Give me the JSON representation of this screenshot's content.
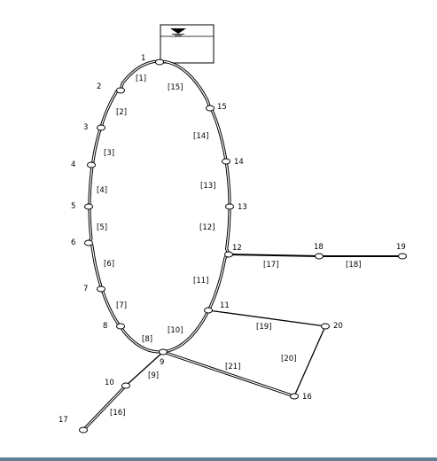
{
  "nodes": [
    {
      "id": "1",
      "label": "1"
    },
    {
      "id": "2",
      "label": "2"
    },
    {
      "id": "3",
      "label": "3"
    },
    {
      "id": "4",
      "label": "4"
    },
    {
      "id": "5",
      "label": "5"
    },
    {
      "id": "6",
      "label": "6"
    },
    {
      "id": "7",
      "label": "7"
    },
    {
      "id": "8",
      "label": "8"
    },
    {
      "id": "9",
      "label": "9"
    },
    {
      "id": "10",
      "label": "10"
    },
    {
      "id": "11",
      "label": "11"
    },
    {
      "id": "12",
      "label": "12"
    },
    {
      "id": "13",
      "label": "13"
    },
    {
      "id": "14",
      "label": "14"
    },
    {
      "id": "15",
      "label": "15"
    },
    {
      "id": "16",
      "label": "16"
    },
    {
      "id": "17",
      "label": "17"
    },
    {
      "id": "18",
      "label": "18"
    },
    {
      "id": "19",
      "label": "19"
    },
    {
      "id": "20",
      "label": "20"
    }
  ],
  "pipes": [
    {
      "id": "p1",
      "label": "[1]",
      "from": "1",
      "to": "2"
    },
    {
      "id": "p2",
      "label": "[2]",
      "from": "2",
      "to": "3"
    },
    {
      "id": "p3",
      "label": "[3]",
      "from": "3",
      "to": "4"
    },
    {
      "id": "p4",
      "label": "[4]",
      "from": "4",
      "to": "5"
    },
    {
      "id": "p5",
      "label": "[5]",
      "from": "5",
      "to": "6"
    },
    {
      "id": "p6",
      "label": "[6]",
      "from": "6",
      "to": "7"
    },
    {
      "id": "p7",
      "label": "[7]",
      "from": "7",
      "to": "8"
    },
    {
      "id": "p8",
      "label": "[8]",
      "from": "8",
      "to": "9"
    },
    {
      "id": "p9",
      "label": "[9]",
      "from": "9",
      "to": "10"
    },
    {
      "id": "p10",
      "label": "[10]",
      "from": "9",
      "to": "11"
    },
    {
      "id": "p11",
      "label": "[11]",
      "from": "11",
      "to": "12"
    },
    {
      "id": "p12",
      "label": "[12]",
      "from": "12",
      "to": "13"
    },
    {
      "id": "p13",
      "label": "[13]",
      "from": "13",
      "to": "14"
    },
    {
      "id": "p14",
      "label": "[14]",
      "from": "14",
      "to": "15"
    },
    {
      "id": "p15",
      "label": "[15]",
      "from": "15",
      "to": "1"
    },
    {
      "id": "p16",
      "label": "[16]",
      "from": "10",
      "to": "17"
    },
    {
      "id": "p17",
      "label": "[17]",
      "from": "12",
      "to": "18"
    },
    {
      "id": "p18",
      "label": "[18]",
      "from": "18",
      "to": "19"
    },
    {
      "id": "p19",
      "label": "[19]",
      "from": "11",
      "to": "20"
    },
    {
      "id": "p20",
      "label": "[20]",
      "from": "20",
      "to": "16"
    },
    {
      "id": "p21",
      "label": "[21]",
      "from": "9",
      "to": "16"
    }
  ]
}
